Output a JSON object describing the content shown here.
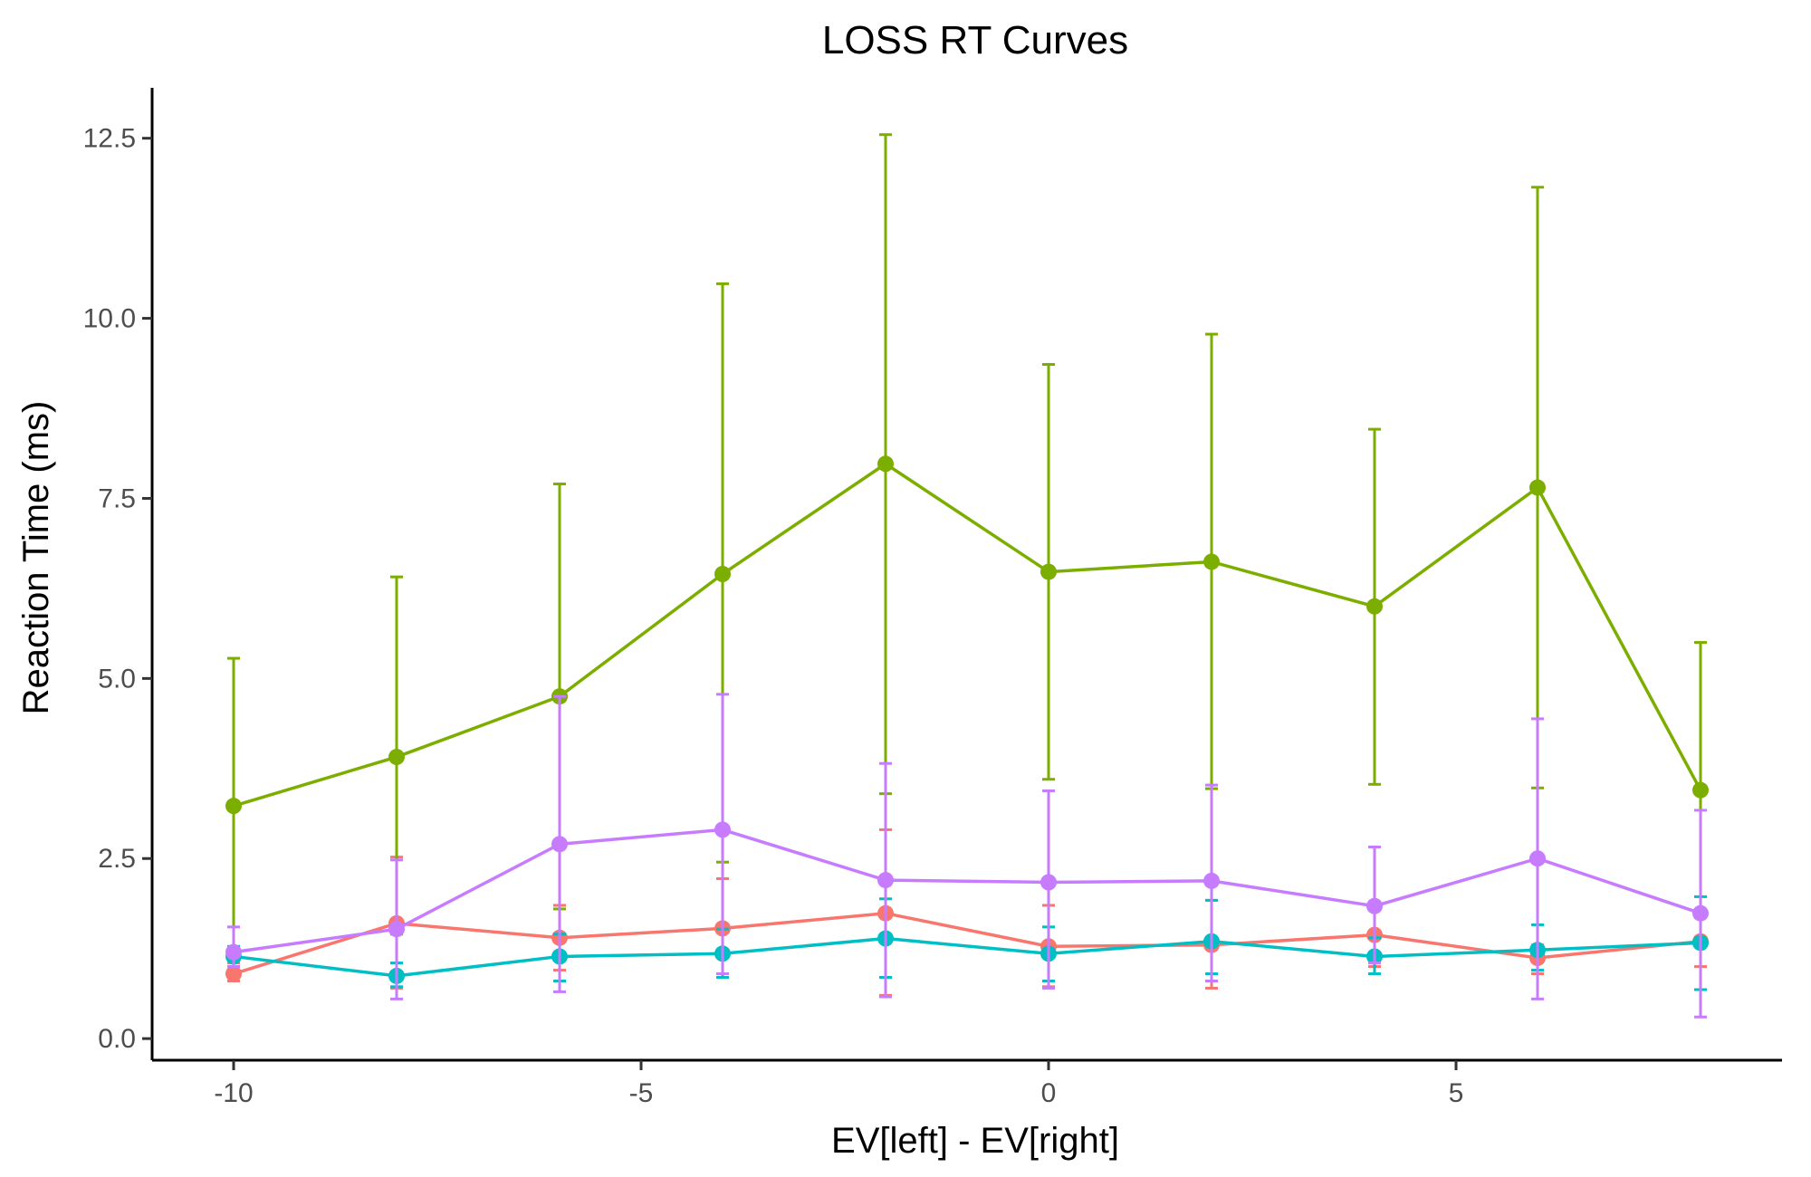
{
  "chart_data": {
    "type": "line",
    "title": "LOSS RT Curves",
    "xlabel": "EV[left] - EV[right]",
    "ylabel": "Reaction Time (ms)",
    "xlim": [
      -11,
      9
    ],
    "ylim": [
      -0.3,
      13.2
    ],
    "x_ticks": [
      -10,
      -5,
      0,
      5
    ],
    "x_tick_labels": [
      "-10",
      "-5",
      "0",
      "5"
    ],
    "y_ticks": [
      0,
      2.5,
      5,
      7.5,
      10,
      12.5
    ],
    "y_tick_labels": [
      "0.0",
      "2.5",
      "5.0",
      "7.5",
      "10.0",
      "12.5"
    ],
    "grid": false,
    "legend": "none",
    "x": [
      -10,
      -8,
      -6,
      -4,
      -2,
      0,
      2,
      4,
      6,
      8
    ],
    "series": [
      {
        "color": "#F8766D",
        "values": [
          0.9,
          1.6,
          1.4,
          1.53,
          1.74,
          1.28,
          1.3,
          1.44,
          1.12,
          1.35
        ],
        "error_low": [
          0.8,
          0.7,
          0.95,
          0.85,
          0.6,
          0.72,
          0.7,
          1.0,
          0.9,
          1.0
        ],
        "error_high": [
          1.05,
          2.52,
          1.85,
          2.22,
          2.9,
          1.85,
          1.92,
          1.9,
          1.3,
          1.68
        ]
      },
      {
        "color": "#7CAE00",
        "values": [
          3.23,
          3.91,
          4.75,
          6.45,
          7.98,
          6.48,
          6.62,
          6.0,
          7.65,
          3.45
        ],
        "error_low": [
          1.2,
          1.45,
          1.8,
          2.45,
          3.4,
          3.6,
          3.47,
          3.53,
          3.48,
          1.4
        ],
        "error_high": [
          5.28,
          6.41,
          7.7,
          10.48,
          12.55,
          9.36,
          9.78,
          8.46,
          11.82,
          5.5
        ]
      },
      {
        "color": "#00BFC4",
        "values": [
          1.14,
          0.87,
          1.14,
          1.18,
          1.39,
          1.18,
          1.35,
          1.14,
          1.23,
          1.33
        ],
        "error_low": [
          1.0,
          0.72,
          0.8,
          0.85,
          0.85,
          0.8,
          0.9,
          0.9,
          0.95,
          0.68
        ],
        "error_high": [
          1.28,
          1.05,
          1.45,
          1.52,
          1.94,
          1.55,
          1.92,
          1.4,
          1.58,
          1.97
        ]
      },
      {
        "color": "#C77CFF",
        "values": [
          1.2,
          1.52,
          2.7,
          2.9,
          2.2,
          2.17,
          2.19,
          1.84,
          2.5,
          1.74
        ],
        "error_low": [
          1.0,
          0.55,
          0.65,
          0.9,
          0.58,
          0.7,
          0.8,
          1.05,
          0.55,
          0.3
        ],
        "error_high": [
          1.55,
          2.48,
          4.75,
          4.78,
          3.82,
          3.44,
          3.52,
          2.66,
          4.44,
          3.17
        ]
      }
    ]
  }
}
